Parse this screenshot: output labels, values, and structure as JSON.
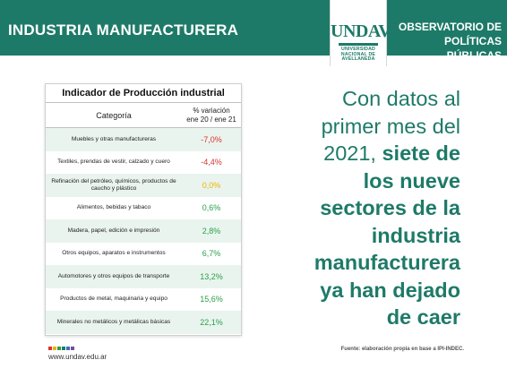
{
  "header": {
    "title": "INDUSTRIA MANUFACTURERA",
    "logo_text": "UNDAV",
    "logo_subtext": [
      "UNIVERSIDAD",
      "NACIONAL DE",
      "AVELLANEDA"
    ],
    "observatorio": [
      "OBSERVATORIO DE",
      "POLÍTICAS PÚBLICAS"
    ]
  },
  "table": {
    "title": "Indicador de Producción industrial",
    "col_category": "Categoría",
    "col_value": [
      "% variación",
      "ene 20 / ene 21"
    ],
    "rows": [
      {
        "category": "Muebles y otras manufactureras",
        "value": "-7,0%",
        "sign": "neg"
      },
      {
        "category": "Textiles, prendas de vestir, calzado y cuero",
        "value": "-4,4%",
        "sign": "neg"
      },
      {
        "category": "Refinación del petróleo, químicos, productos de caucho y plástico",
        "value": "0,0%",
        "sign": "zero"
      },
      {
        "category": "Alimentos, bebidas y tabaco",
        "value": "0,6%",
        "sign": "pos"
      },
      {
        "category": "Madera, papel, edición e impresión",
        "value": "2,8%",
        "sign": "pos"
      },
      {
        "category": "Otros equipos, aparatos e instrumentos",
        "value": "6,7%",
        "sign": "pos"
      },
      {
        "category": "Automotores y otros equipos de transporte",
        "value": "13,2%",
        "sign": "pos"
      },
      {
        "category": "Productos de metal, maquinaria y equipo",
        "value": "15,6%",
        "sign": "pos"
      },
      {
        "category": "Minerales no metálicos y metálicas básicas",
        "value": "22,1%",
        "sign": "pos"
      }
    ]
  },
  "headline": {
    "lines": [
      {
        "text": "Con datos al",
        "bold": false
      },
      {
        "text": "primer mes del",
        "bold": false
      },
      {
        "parts": [
          {
            "text": "2021, ",
            "bold": false
          },
          {
            "text": "siete de",
            "bold": true
          }
        ]
      },
      {
        "text": "los nueve",
        "bold": true
      },
      {
        "text": "sectores de la",
        "bold": true
      },
      {
        "text": "industria",
        "bold": true
      },
      {
        "text": "manufacturera",
        "bold": true
      },
      {
        "text": "ya han dejado",
        "bold": true
      },
      {
        "text": "de caer",
        "bold": true
      }
    ]
  },
  "footer": {
    "url": "www.undav.edu.ar",
    "source": "Fuente: elaboración propia en base a IPI-INDEC.",
    "dot_colors": [
      "#d8352c",
      "#e8b400",
      "#2aa04a",
      "#1e7a68",
      "#3a6fb5",
      "#7a4aa0"
    ]
  },
  "colors": {
    "brand": "#1e7a68",
    "negative": "#d8352c",
    "zero": "#e8b400",
    "positive": "#2aa04a",
    "row_stripe": "#eaf4ee"
  }
}
